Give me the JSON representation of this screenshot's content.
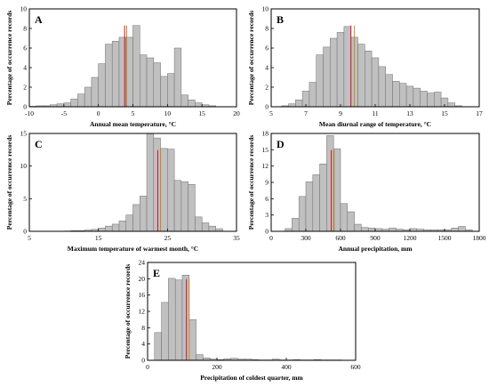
{
  "figure": {
    "mean_line_color": "#d9821f",
    "median_line_color": "#c8102e",
    "bar_color": "#c0c0c0"
  },
  "chart_data": [
    {
      "letter": "A",
      "type": "bar",
      "xlabel": "Annual mean temperature, °C",
      "ylabel": "Percentage of occurrence records",
      "xlim": [
        -10,
        20
      ],
      "ylim": [
        0,
        10
      ],
      "xticks": [
        -10,
        -5,
        0,
        5,
        10,
        15,
        20
      ],
      "yticks": [
        0,
        2,
        4,
        6,
        8,
        10
      ],
      "bin_width": 1,
      "bins_start": [
        -10,
        -9,
        -8,
        -7,
        -6,
        -5,
        -4,
        -3,
        -2,
        -1,
        0,
        1,
        2,
        3,
        4,
        5,
        6,
        7,
        8,
        9,
        10,
        11,
        12,
        13,
        14,
        15,
        16
      ],
      "values": [
        0.05,
        0.1,
        0.1,
        0.2,
        0.3,
        0.4,
        0.8,
        1.3,
        2.0,
        3.0,
        4.4,
        6.4,
        6.7,
        7.1,
        7.1,
        8.3,
        5.3,
        5.0,
        4.5,
        3.1,
        3.4,
        6.0,
        1.2,
        0.7,
        0.4,
        0.2,
        0.1
      ],
      "median_x": 3.8,
      "mean_x": 4.1
    },
    {
      "letter": "B",
      "type": "bar",
      "xlabel": "Mean diurnal range of temperature, °C",
      "ylabel": "Percentage of occurrence records",
      "xlim": [
        5,
        17
      ],
      "ylim": [
        0,
        10
      ],
      "xticks": [
        5,
        7,
        9,
        11,
        13,
        15,
        17
      ],
      "yticks": [
        0,
        2,
        4,
        6,
        8,
        10
      ],
      "bin_width": 0.4,
      "bins_start": [
        5.6,
        6.0,
        6.4,
        6.8,
        7.2,
        7.6,
        8.0,
        8.4,
        8.8,
        9.2,
        9.6,
        10.0,
        10.4,
        10.8,
        11.2,
        11.6,
        12.0,
        12.4,
        12.8,
        13.2,
        13.6,
        14.0,
        14.4,
        14.8,
        15.2,
        15.6
      ],
      "values": [
        0.1,
        0.3,
        0.7,
        1.6,
        2.5,
        5.3,
        6.1,
        7.0,
        7.6,
        8.2,
        7.1,
        6.4,
        5.7,
        5.0,
        4.1,
        3.3,
        2.6,
        2.4,
        2.1,
        1.9,
        1.6,
        1.4,
        1.5,
        0.9,
        0.4,
        0.1
      ],
      "median_x": 9.6,
      "mean_x": 9.8
    },
    {
      "letter": "C",
      "type": "bar",
      "xlabel": "Maximum temperature of warmest month, °C",
      "ylabel": "Percentage of occurrence records",
      "xlim": [
        5,
        35
      ],
      "ylim": [
        0,
        15
      ],
      "xticks": [
        5,
        15,
        25,
        35
      ],
      "yticks": [
        0,
        5,
        10,
        15
      ],
      "bin_width": 1,
      "bins_start": [
        10,
        11,
        12,
        13,
        14,
        15,
        16,
        17,
        18,
        19,
        20,
        21,
        22,
        23,
        24,
        25,
        26,
        27,
        28,
        29,
        30,
        31,
        32
      ],
      "values": [
        0.05,
        0.1,
        0.1,
        0.2,
        0.3,
        0.5,
        0.8,
        1.1,
        1.6,
        2.5,
        4.1,
        5.4,
        15.0,
        14.3,
        12.7,
        12.6,
        7.8,
        7.6,
        7.2,
        2.2,
        1.3,
        0.8,
        0.4
      ],
      "median_x": 23.6,
      "mean_x": 24.0
    },
    {
      "letter": "D",
      "type": "bar",
      "xlabel": "Annual precipitation, mm",
      "ylabel": "Percentage of occurrence records",
      "xlim": [
        0,
        1800
      ],
      "ylim": [
        0,
        18
      ],
      "xticks": [
        0,
        300,
        600,
        900,
        1200,
        1500,
        1800
      ],
      "yticks": [
        0,
        3,
        6,
        9,
        12,
        15,
        18
      ],
      "bin_width": 60,
      "bins_start": [
        120,
        180,
        240,
        300,
        360,
        420,
        480,
        540,
        600,
        660,
        720,
        780,
        840,
        900,
        960,
        1020,
        1080,
        1140,
        1200,
        1260,
        1320,
        1380,
        1440,
        1500,
        1560,
        1620,
        1680
      ],
      "values": [
        0.5,
        2.4,
        6.4,
        9.1,
        10.4,
        12.4,
        17.6,
        15.2,
        5.1,
        3.6,
        1.3,
        0.7,
        0.6,
        0.5,
        0.4,
        0.6,
        0.4,
        0.3,
        0.5,
        0.4,
        0.3,
        0.3,
        0.3,
        0.3,
        0.6,
        0.9,
        0.3
      ],
      "median_x": 520,
      "mean_x": 545
    },
    {
      "letter": "E",
      "type": "bar",
      "xlabel": "Precipitation of coldest quarter, mm",
      "ylabel": "Percentage of occurrence records",
      "xlim": [
        0,
        600
      ],
      "ylim": [
        0,
        24
      ],
      "xticks": [
        0,
        200,
        400,
        600
      ],
      "yticks": [
        0,
        4,
        8,
        12,
        16,
        20,
        24
      ],
      "bin_width": 20,
      "bins_start": [
        20,
        40,
        60,
        80,
        100,
        120,
        140,
        160,
        180,
        200,
        220,
        240,
        260,
        280,
        300,
        320,
        340,
        360,
        380,
        400,
        420,
        440,
        460,
        480,
        500,
        520,
        540
      ],
      "values": [
        6.8,
        14.2,
        20.1,
        19.7,
        20.9,
        10.0,
        1.4,
        0.6,
        0.3,
        0.2,
        0.4,
        0.5,
        0.3,
        0.3,
        0.2,
        0.1,
        0.1,
        0.3,
        0.1,
        0.1,
        0.2,
        0.1,
        0.1,
        0.2,
        0.1,
        0.1,
        0.1
      ],
      "median_x": 112,
      "mean_x": 120
    }
  ]
}
